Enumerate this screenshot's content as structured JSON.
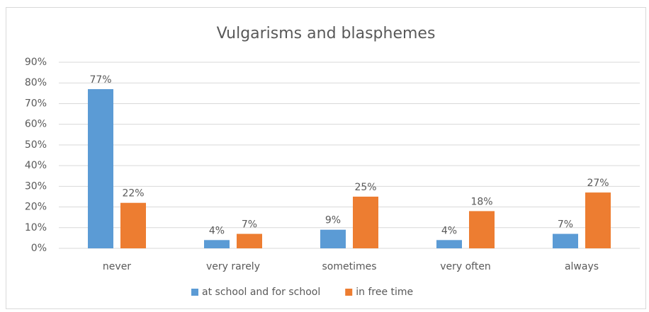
{
  "chart_data": {
    "type": "bar",
    "title": "Vulgarisms and blasphemes",
    "categories": [
      "never",
      "very rarely",
      "sometimes",
      "very often",
      "always"
    ],
    "series": [
      {
        "name": "at school and for school",
        "color": "#5b9bd5",
        "values": [
          77,
          4,
          9,
          4,
          7
        ],
        "value_labels": [
          "77%",
          "4%",
          "9%",
          "4%",
          "7%"
        ]
      },
      {
        "name": "in free time",
        "color": "#ed7d31",
        "values": [
          22,
          7,
          25,
          18,
          27
        ],
        "value_labels": [
          "22%",
          "7%",
          "25%",
          "18%",
          "27%"
        ]
      }
    ],
    "ylim": [
      0,
      90
    ],
    "yticks": [
      {
        "value": 0,
        "label": "0%"
      },
      {
        "value": 10,
        "label": "10%"
      },
      {
        "value": 20,
        "label": "20%"
      },
      {
        "value": 30,
        "label": "30%"
      },
      {
        "value": 40,
        "label": "40%"
      },
      {
        "value": 50,
        "label": "50%"
      },
      {
        "value": 60,
        "label": "60%"
      },
      {
        "value": 70,
        "label": "70%"
      },
      {
        "value": 80,
        "label": "80%"
      },
      {
        "value": 90,
        "label": "90%"
      }
    ],
    "grid": true,
    "legend": "bottom"
  }
}
